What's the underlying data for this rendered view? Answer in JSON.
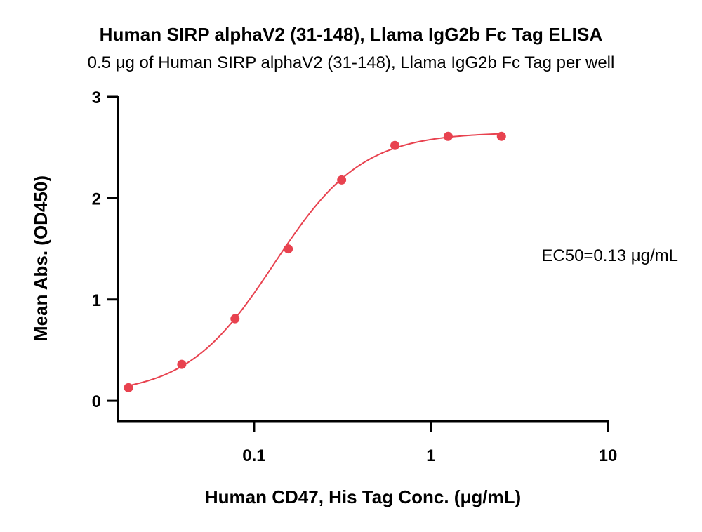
{
  "chart_data": {
    "type": "scatter",
    "title": "Human SIRP alphaV2 (31-148), Llama IgG2b Fc Tag ELISA",
    "subtitle": "0.5 μg of Human SIRP alphaV2 (31-148), Llama IgG2b Fc Tag per well",
    "xlabel": "Human CD47, His Tag Conc. (μg/mL)",
    "ylabel": "Mean Abs. (OD450)",
    "x_scale": "log",
    "xlim": [
      0.017,
      10
    ],
    "ylim": [
      -0.2,
      3
    ],
    "x_ticks": [
      0.1,
      1,
      10
    ],
    "x_tick_labels": [
      "0.1",
      "1",
      "10"
    ],
    "y_ticks": [
      0,
      1,
      2,
      3
    ],
    "y_tick_labels": [
      "0",
      "1",
      "2",
      "3"
    ],
    "grid": false,
    "series": [
      {
        "x": [
          0.0195,
          0.039,
          0.078,
          0.156,
          0.3125,
          0.625,
          1.25,
          2.5
        ],
        "y": [
          0.13,
          0.36,
          0.81,
          1.5,
          2.18,
          2.52,
          2.61,
          2.61
        ],
        "color": "#e8424f",
        "fit": "4PL"
      }
    ],
    "fit_curve": {
      "bottom": 0.06,
      "top": 2.65,
      "ec50": 0.13,
      "hill": 1.75,
      "color": "#e8424f"
    },
    "annotations": [
      {
        "text": "EC50=0.13 μg/mL",
        "position": "right-middle"
      }
    ]
  }
}
